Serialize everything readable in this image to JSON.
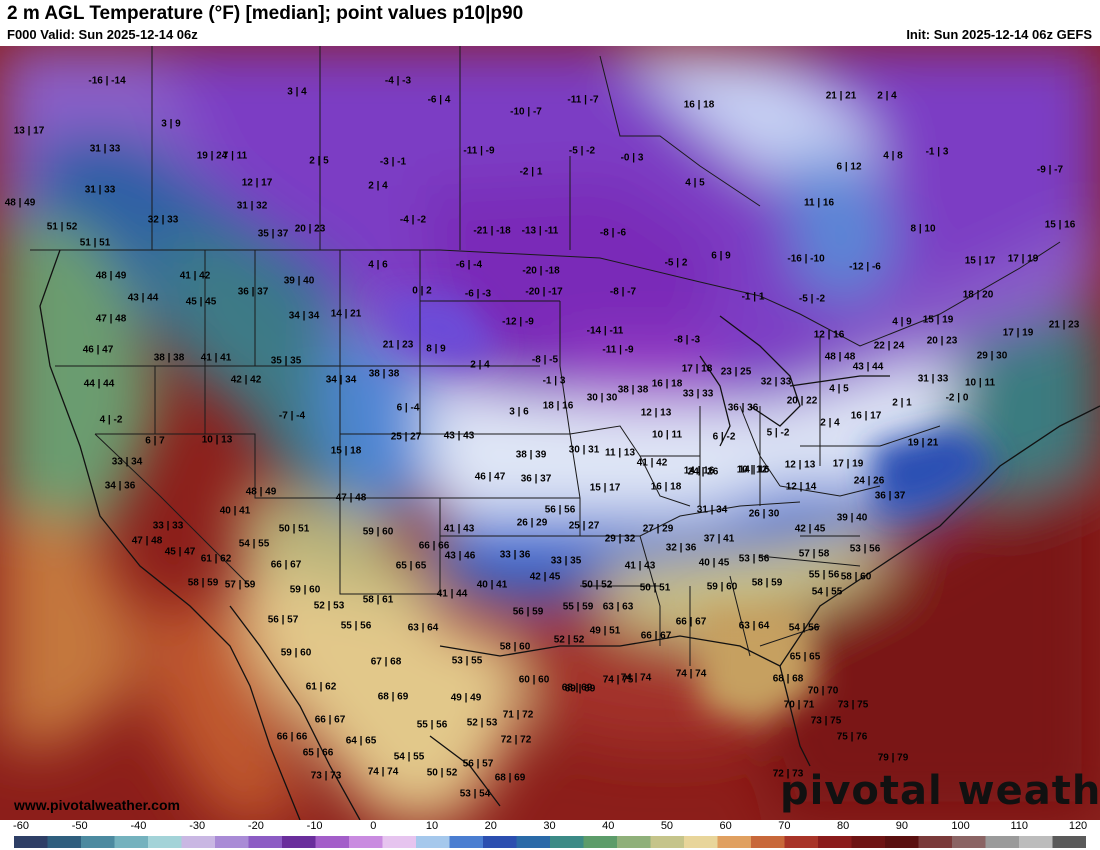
{
  "header": {
    "title": "2 m AGL Temperature (°F) [median]; point values p10|p90",
    "valid": "F000 Valid: Sun 2025-12-14 06z",
    "init": "Init: Sun 2025-12-14 06z GEFS"
  },
  "footer": {
    "website": "www.pivotalweather.com",
    "logo": "pivotal weather"
  },
  "colorbar": {
    "ticks": [
      "-60",
      "-50",
      "-40",
      "-30",
      "-20",
      "-10",
      "0",
      "10",
      "20",
      "30",
      "40",
      "50",
      "60",
      "70",
      "80",
      "90",
      "100",
      "110",
      "120"
    ],
    "colors": [
      "#2e3f66",
      "#2f5f7e",
      "#4c8aa0",
      "#74b2be",
      "#a3d3d8",
      "#c9b7e3",
      "#a98bd6",
      "#8c5cc4",
      "#6a2e9c",
      "#a35ec9",
      "#c98be0",
      "#e6c4ef",
      "#a5c8ec",
      "#4a7ed1",
      "#2b4fb0",
      "#2a6aa8",
      "#3c8a86",
      "#5c9c6a",
      "#8fb07a",
      "#c5c48a",
      "#e8d59a",
      "#e0a060",
      "#c8683a",
      "#a83428",
      "#8a1c1c",
      "#6e1414",
      "#5a1010",
      "#7a3a3a",
      "#8a6464",
      "#9a9a9a",
      "#bcbcbc",
      "#5a5a5a"
    ]
  },
  "points": [
    "-16 | -14",
    "3 | 4",
    "-4 | -3",
    "-6 | 4",
    "-11 | -7",
    "16 | 18",
    "21 | 21",
    "2 | 4",
    "13 | 17",
    "3 | 9",
    "-10 | -7",
    "31 | 33",
    "19 | 24",
    "7 | 11",
    "2 | 5",
    "-3 | -1",
    "-11 | -9",
    "-5 | -2",
    "-0 | 3",
    "6 | 12",
    "4 | 8",
    "-1 | 3",
    "-9 | -7",
    "31 | 33",
    "12 | 17",
    "2 | 4",
    "-2 | 1",
    "4 | 5",
    "48 | 49",
    "32 | 33",
    "31 | 32",
    "-4 | -2",
    "11 | 16",
    "51 | 52",
    "35 | 37",
    "20 | 23",
    "-21 | -18",
    "-13 | -11",
    "-8 | -6",
    "8 | 10",
    "15 | 16",
    "51 | 51",
    "-16 | -10",
    "15 | 17",
    "17 | 19",
    "48 | 49",
    "41 | 42",
    "4 | 6",
    "-6 | -4",
    "-20 | -18",
    "-12 | -6",
    "-5 | 2",
    "6 | 9",
    "43 | 44",
    "45 | 45",
    "36 | 37",
    "39 | 40",
    "0 | 2",
    "-6 | -3",
    "-20 | -17",
    "-8 | -7",
    "-1 | 1",
    "-5 | -2",
    "18 | 20",
    "47 | 48",
    "34 | 34",
    "14 | 21",
    "-12 | -9",
    "-14 | -11",
    "-8 | -3",
    "12 | 16",
    "4 | 9",
    "15 | 19",
    "17 | 19",
    "21 | 23",
    "46 | 47",
    "38 | 38",
    "41 | 41",
    "35 | 35",
    "21 | 23",
    "8 | 9",
    "-11 | -9",
    "22 | 24",
    "20 | 23",
    "29 | 30",
    "44 | 44",
    "42 | 42",
    "34 | 34",
    "38 | 38",
    "2 | 4",
    "-8 | -5",
    "-1 | 3",
    "16 | 18",
    "17 | 18",
    "23 | 25",
    "32 | 33",
    "48 | 48",
    "43 | 44",
    "31 | 33",
    "10 | 11",
    "4 | -2",
    "-7 | -4",
    "6 | -4",
    "3 | 6",
    "18 | 16",
    "30 | 30",
    "38 | 38",
    "33 | 33",
    "36 | 36",
    "20 | 22",
    "4 | 5",
    "2 | 1",
    "-2 | 0",
    "6 | 7",
    "10 | 13",
    "15 | 18",
    "25 | 27",
    "43 | 43",
    "38 | 39",
    "30 | 31",
    "11 | 13",
    "12 | 13",
    "10 | 11",
    "6 | -2",
    "5 | -2",
    "2 | 4",
    "16 | 17",
    "19 | 21",
    "33 | 34",
    "34 | 36",
    "48 | 49",
    "47 | 48",
    "46 | 47",
    "36 | 37",
    "15 | 17",
    "16 | 18",
    "14 | 16",
    "14 | 16",
    "12 | 13",
    "17 | 19",
    "24 | 26",
    "33 | 33",
    "40 | 41",
    "50 | 51",
    "56 | 56",
    "41 | 42",
    "24 | 26",
    "10 | 12",
    "12 | 14",
    "36 | 37",
    "47 | 48",
    "54 | 55",
    "59 | 60",
    "41 | 43",
    "26 | 29",
    "25 | 27",
    "27 | 29",
    "31 | 34",
    "26 | 30",
    "39 | 40",
    "45 | 47",
    "61 | 62",
    "66 | 66",
    "29 | 32",
    "32 | 36",
    "37 | 41",
    "42 | 45",
    "53 | 56",
    "57 | 59",
    "66 | 67",
    "65 | 65",
    "43 | 46",
    "33 | 36",
    "33 | 35",
    "41 | 43",
    "40 | 45",
    "53 | 56",
    "57 | 58",
    "58 | 60",
    "58 | 59",
    "59 | 60",
    "41 | 44",
    "40 | 41",
    "42 | 45",
    "50 | 52",
    "50 | 51",
    "59 | 60",
    "58 | 59",
    "55 | 56",
    "54 | 55",
    "52 | 53",
    "58 | 61",
    "56 | 59",
    "55 | 59",
    "63 | 63",
    "56 | 57",
    "55 | 56",
    "63 | 64",
    "52 | 52",
    "49 | 51",
    "66 | 67",
    "66 | 67",
    "63 | 64",
    "54 | 56",
    "59 | 60",
    "67 | 68",
    "53 | 55",
    "58 | 60",
    "65 | 65",
    "61 | 62",
    "68 | 69",
    "49 | 49",
    "60 | 60",
    "68 | 69",
    "69 | 69",
    "74 | 75",
    "74 | 74",
    "74 | 74",
    "68 | 68",
    "70 | 70",
    "66 | 67",
    "55 | 56",
    "52 | 53",
    "71 | 72",
    "70 | 71",
    "73 | 75",
    "66 | 66",
    "64 | 65",
    "72 | 72",
    "73 | 75",
    "65 | 66",
    "54 | 55",
    "56 | 57",
    "75 | 76",
    "79 | 79",
    "73 | 73",
    "74 | 74",
    "50 | 52",
    "68 | 69",
    "72 | 73",
    "53 | 54"
  ]
}
